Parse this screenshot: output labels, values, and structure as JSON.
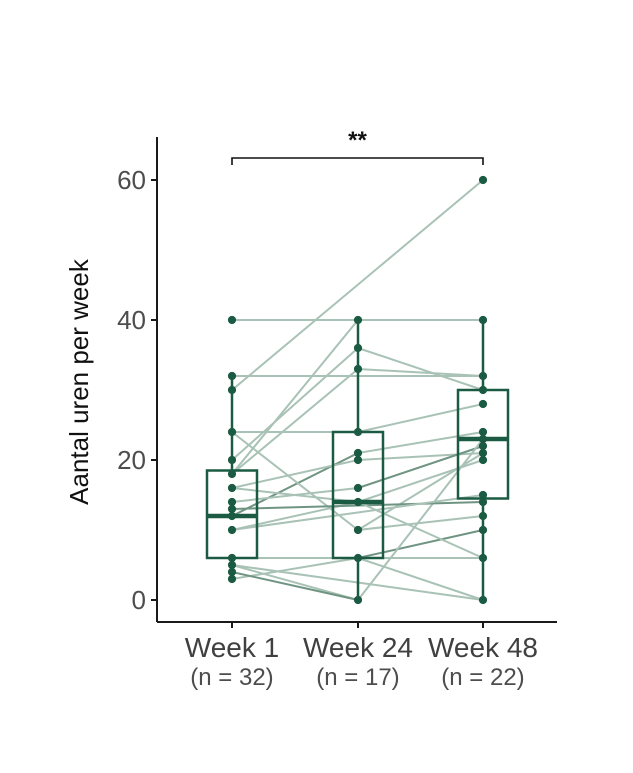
{
  "chart_data": {
    "type": "box",
    "title": "",
    "ylabel": "Aantal uren per week",
    "xlabel": "",
    "grid": false,
    "legend": false,
    "y_axis": {
      "label": "Aantal uren per week",
      "ticks": [
        0,
        20,
        40,
        60
      ],
      "range": [
        -2,
        66
      ]
    },
    "groups": [
      {
        "label": "Week 1",
        "sublabel": "(n = 32)",
        "n": 32,
        "box": {
          "q1": 6,
          "median": 12,
          "q3": 18.5,
          "whisker_low": 3,
          "whisker_high": 32
        },
        "points": [
          40,
          32,
          30,
          24,
          20,
          18,
          16,
          14,
          13,
          12,
          10,
          6,
          5,
          4,
          3
        ]
      },
      {
        "label": "Week 24",
        "sublabel": "(n = 17)",
        "n": 17,
        "box": {
          "q1": 6,
          "median": 14,
          "q3": 24,
          "whisker_low": 0,
          "whisker_high": 40
        },
        "points": [
          40,
          36,
          33,
          24,
          21,
          20,
          16,
          14,
          10,
          6,
          0
        ]
      },
      {
        "label": "Week 48",
        "sublabel": "(n = 22)",
        "n": 22,
        "box": {
          "q1": 14.5,
          "median": 23,
          "q3": 30,
          "whisker_low": 0,
          "whisker_high": 40
        },
        "points": [
          60,
          40,
          32,
          30,
          28,
          24,
          23,
          22,
          21,
          20,
          15,
          14,
          12,
          10,
          6,
          0
        ]
      }
    ],
    "connections": [
      [
        0,
        40,
        1,
        40,
        "l"
      ],
      [
        1,
        40,
        2,
        40,
        "l"
      ],
      [
        0,
        30,
        2,
        60,
        "l"
      ],
      [
        0,
        32,
        2,
        32,
        "l"
      ],
      [
        0,
        18,
        1,
        40,
        "l"
      ],
      [
        0,
        20,
        1,
        36,
        "l"
      ],
      [
        0,
        18,
        1,
        33,
        "l"
      ],
      [
        1,
        36,
        2,
        30,
        "l"
      ],
      [
        1,
        33,
        2,
        32,
        "l"
      ],
      [
        0,
        24,
        1,
        24,
        "l"
      ],
      [
        1,
        24,
        2,
        28,
        "l"
      ],
      [
        0,
        12,
        1,
        21,
        "m"
      ],
      [
        1,
        21,
        2,
        24,
        "l"
      ],
      [
        0,
        16,
        1,
        20,
        "l"
      ],
      [
        1,
        20,
        2,
        21,
        "l"
      ],
      [
        0,
        14,
        1,
        16,
        "l"
      ],
      [
        1,
        16,
        2,
        22,
        "m"
      ],
      [
        0,
        10,
        1,
        14,
        "l"
      ],
      [
        1,
        14,
        2,
        20,
        "l"
      ],
      [
        0,
        24,
        1,
        10,
        "l"
      ],
      [
        1,
        10,
        2,
        21,
        "l"
      ],
      [
        1,
        10,
        2,
        12,
        "l"
      ],
      [
        0,
        3,
        1,
        6,
        "l"
      ],
      [
        1,
        6,
        2,
        10,
        "m"
      ],
      [
        1,
        6,
        2,
        0,
        "l"
      ],
      [
        0,
        5,
        1,
        0,
        "l"
      ],
      [
        0,
        4,
        1,
        0,
        "m"
      ],
      [
        1,
        0,
        2,
        23,
        "l"
      ],
      [
        0,
        13,
        2,
        14,
        "m"
      ],
      [
        0,
        6,
        2,
        6,
        "l"
      ],
      [
        0,
        10,
        2,
        15,
        "l"
      ],
      [
        1,
        14,
        2,
        6,
        "l"
      ],
      [
        0,
        16,
        1,
        14,
        "l"
      ],
      [
        0,
        5,
        2,
        0,
        "l"
      ]
    ],
    "significance": {
      "from_group": "Week 1",
      "to_group": "Week 48",
      "label": "**"
    },
    "colors": {
      "box_and_points": "#1b5a43",
      "line_light": "#a9c2b6",
      "line_mid": "#6f9482",
      "axis_line": "#1a1a1a",
      "tick_text": "#4d4d4d",
      "category_text": "#404040",
      "axis_title_text": "#111111",
      "significance": "#111111",
      "background": "#ffffff"
    }
  }
}
